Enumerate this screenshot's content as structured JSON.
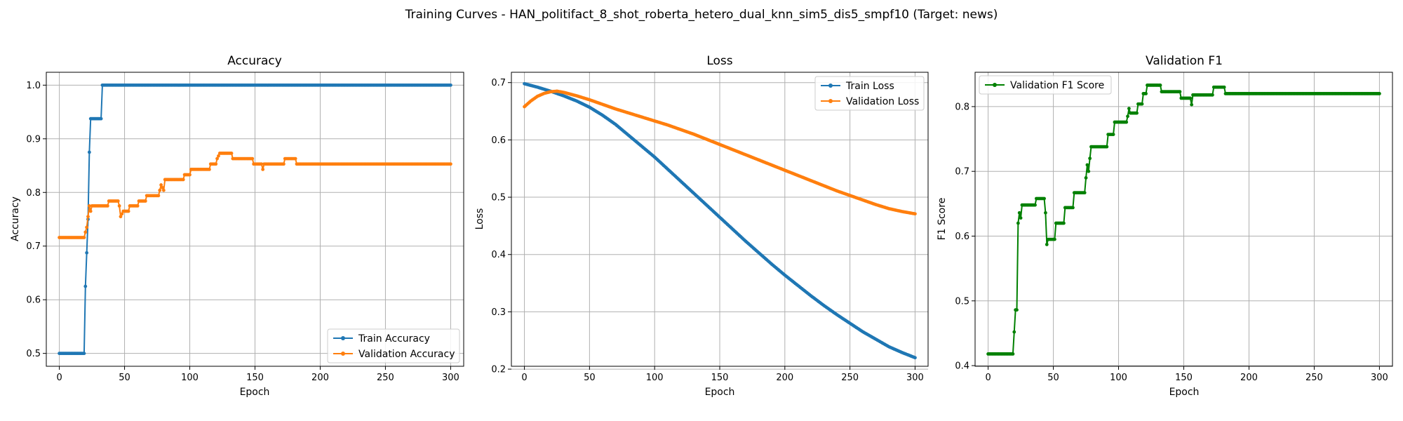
{
  "figure": {
    "suptitle": "Training Curves - HAN_politifact_8_shot_roberta_hetero_dual_knn_sim5_dis5_smpf10 (Target: news)"
  },
  "chart_data": [
    {
      "type": "line",
      "title": "Accuracy",
      "xlabel": "Epoch",
      "ylabel": "Accuracy",
      "xlim": [
        -10,
        310
      ],
      "ylim": [
        0.476,
        1.024
      ],
      "xticks": [
        0,
        50,
        100,
        150,
        200,
        250,
        300
      ],
      "yticks": [
        0.5,
        0.6,
        0.7,
        0.8,
        0.9,
        1.0
      ],
      "ytick_labels": [
        "0.5",
        "0.6",
        "0.7",
        "0.8",
        "0.9",
        "1.0"
      ],
      "grid": true,
      "legend_loc": "lower-right",
      "series": [
        {
          "name": "Train Accuracy",
          "color": "#1f77b4",
          "points": [
            [
              0,
              0.5
            ],
            [
              19,
              0.5
            ],
            [
              20,
              0.625
            ],
            [
              21,
              0.6875
            ],
            [
              22,
              0.75
            ],
            [
              23,
              0.875
            ],
            [
              24,
              0.9375
            ],
            [
              32,
              0.9375
            ],
            [
              33,
              1.0
            ],
            [
              300,
              1.0
            ]
          ]
        },
        {
          "name": "Validation Accuracy",
          "color": "#ff7f0e",
          "points": [
            [
              0,
              0.716
            ],
            [
              19,
              0.716
            ],
            [
              20,
              0.726
            ],
            [
              21,
              0.735
            ],
            [
              22,
              0.755
            ],
            [
              23,
              0.775
            ],
            [
              24,
              0.765
            ],
            [
              25,
              0.775
            ],
            [
              37,
              0.775
            ],
            [
              38,
              0.784
            ],
            [
              45,
              0.784
            ],
            [
              46,
              0.775
            ],
            [
              47,
              0.755
            ],
            [
              49,
              0.765
            ],
            [
              53,
              0.765
            ],
            [
              54,
              0.775
            ],
            [
              60,
              0.775
            ],
            [
              61,
              0.784
            ],
            [
              66,
              0.784
            ],
            [
              67,
              0.794
            ],
            [
              76,
              0.794
            ],
            [
              77,
              0.804
            ],
            [
              78,
              0.814
            ],
            [
              80,
              0.804
            ],
            [
              81,
              0.824
            ],
            [
              95,
              0.824
            ],
            [
              96,
              0.833
            ],
            [
              100,
              0.833
            ],
            [
              101,
              0.843
            ],
            [
              115,
              0.843
            ],
            [
              116,
              0.853
            ],
            [
              120,
              0.853
            ],
            [
              121,
              0.863
            ],
            [
              123,
              0.873
            ],
            [
              132,
              0.873
            ],
            [
              133,
              0.863
            ],
            [
              148,
              0.863
            ],
            [
              149,
              0.853
            ],
            [
              155,
              0.853
            ],
            [
              156,
              0.843
            ],
            [
              157,
              0.853
            ],
            [
              172,
              0.853
            ],
            [
              173,
              0.863
            ],
            [
              181,
              0.863
            ],
            [
              182,
              0.853
            ],
            [
              300,
              0.853
            ]
          ]
        }
      ]
    },
    {
      "type": "line",
      "title": "Loss",
      "xlabel": "Epoch",
      "ylabel": "Loss",
      "xlim": [
        -10,
        310
      ],
      "ylim": [
        0.205,
        0.718
      ],
      "xticks": [
        0,
        50,
        100,
        150,
        200,
        250,
        300
      ],
      "yticks": [
        0.2,
        0.3,
        0.4,
        0.5,
        0.6,
        0.7
      ],
      "ytick_labels": [
        "0.2",
        "0.3",
        "0.4",
        "0.5",
        "0.6",
        "0.7"
      ],
      "grid": true,
      "legend_loc": "upper-right",
      "series": [
        {
          "name": "Train Loss",
          "color": "#1f77b4",
          "points": [
            [
              0,
              0.698
            ],
            [
              10,
              0.692
            ],
            [
              20,
              0.685
            ],
            [
              30,
              0.677
            ],
            [
              40,
              0.668
            ],
            [
              50,
              0.657
            ],
            [
              60,
              0.643
            ],
            [
              70,
              0.627
            ],
            [
              80,
              0.608
            ],
            [
              90,
              0.589
            ],
            [
              100,
              0.57
            ],
            [
              110,
              0.549
            ],
            [
              120,
              0.528
            ],
            [
              130,
              0.507
            ],
            [
              140,
              0.486
            ],
            [
              150,
              0.465
            ],
            [
              160,
              0.444
            ],
            [
              170,
              0.423
            ],
            [
              180,
              0.403
            ],
            [
              190,
              0.383
            ],
            [
              200,
              0.364
            ],
            [
              210,
              0.346
            ],
            [
              220,
              0.328
            ],
            [
              230,
              0.311
            ],
            [
              240,
              0.295
            ],
            [
              250,
              0.28
            ],
            [
              260,
              0.265
            ],
            [
              270,
              0.252
            ],
            [
              280,
              0.239
            ],
            [
              290,
              0.229
            ],
            [
              300,
              0.22
            ]
          ]
        },
        {
          "name": "Validation Loss",
          "color": "#ff7f0e",
          "points": [
            [
              0,
              0.658
            ],
            [
              5,
              0.668
            ],
            [
              10,
              0.676
            ],
            [
              15,
              0.681
            ],
            [
              20,
              0.684
            ],
            [
              25,
              0.685
            ],
            [
              30,
              0.683
            ],
            [
              40,
              0.677
            ],
            [
              50,
              0.67
            ],
            [
              60,
              0.662
            ],
            [
              70,
              0.654
            ],
            [
              80,
              0.647
            ],
            [
              90,
              0.64
            ],
            [
              100,
              0.633
            ],
            [
              110,
              0.626
            ],
            [
              120,
              0.618
            ],
            [
              130,
              0.61
            ],
            [
              140,
              0.601
            ],
            [
              150,
              0.592
            ],
            [
              160,
              0.583
            ],
            [
              170,
              0.574
            ],
            [
              180,
              0.565
            ],
            [
              190,
              0.556
            ],
            [
              200,
              0.547
            ],
            [
              210,
              0.538
            ],
            [
              220,
              0.529
            ],
            [
              230,
              0.52
            ],
            [
              240,
              0.511
            ],
            [
              250,
              0.503
            ],
            [
              260,
              0.495
            ],
            [
              270,
              0.487
            ],
            [
              280,
              0.48
            ],
            [
              290,
              0.475
            ],
            [
              300,
              0.471
            ]
          ]
        }
      ]
    },
    {
      "type": "line",
      "title": "Validation F1",
      "xlabel": "Epoch",
      "ylabel": "F1 Score",
      "xlim": [
        -10,
        310
      ],
      "ylim": [
        0.399,
        0.853
      ],
      "xticks": [
        0,
        50,
        100,
        150,
        200,
        250,
        300
      ],
      "yticks": [
        0.4,
        0.5,
        0.6,
        0.7,
        0.8
      ],
      "ytick_labels": [
        "0.4",
        "0.5",
        "0.6",
        "0.7",
        "0.8"
      ],
      "grid": true,
      "legend_loc": "upper-left",
      "series": [
        {
          "name": "Validation F1 Score",
          "color": "#008000",
          "points": [
            [
              0,
              0.418
            ],
            [
              19,
              0.418
            ],
            [
              20,
              0.452
            ],
            [
              21,
              0.486
            ],
            [
              22,
              0.486
            ],
            [
              23,
              0.62
            ],
            [
              24,
              0.636
            ],
            [
              25,
              0.628
            ],
            [
              26,
              0.648
            ],
            [
              36,
              0.648
            ],
            [
              37,
              0.658
            ],
            [
              43,
              0.658
            ],
            [
              44,
              0.636
            ],
            [
              45,
              0.587
            ],
            [
              46,
              0.595
            ],
            [
              51,
              0.595
            ],
            [
              52,
              0.62
            ],
            [
              58,
              0.62
            ],
            [
              59,
              0.644
            ],
            [
              65,
              0.644
            ],
            [
              66,
              0.667
            ],
            [
              74,
              0.667
            ],
            [
              75,
              0.69
            ],
            [
              76,
              0.71
            ],
            [
              77,
              0.7
            ],
            [
              78,
              0.72
            ],
            [
              79,
              0.738
            ],
            [
              91,
              0.738
            ],
            [
              92,
              0.757
            ],
            [
              96,
              0.757
            ],
            [
              97,
              0.776
            ],
            [
              106,
              0.776
            ],
            [
              107,
              0.785
            ],
            [
              108,
              0.797
            ],
            [
              109,
              0.79
            ],
            [
              114,
              0.79
            ],
            [
              115,
              0.804
            ],
            [
              118,
              0.804
            ],
            [
              119,
              0.82
            ],
            [
              121,
              0.82
            ],
            [
              122,
              0.833
            ],
            [
              132,
              0.833
            ],
            [
              133,
              0.823
            ],
            [
              147,
              0.823
            ],
            [
              148,
              0.813
            ],
            [
              155,
              0.813
            ],
            [
              156,
              0.803
            ],
            [
              157,
              0.818
            ],
            [
              172,
              0.818
            ],
            [
              173,
              0.83
            ],
            [
              181,
              0.83
            ],
            [
              182,
              0.82
            ],
            [
              300,
              0.82
            ]
          ]
        }
      ]
    }
  ]
}
